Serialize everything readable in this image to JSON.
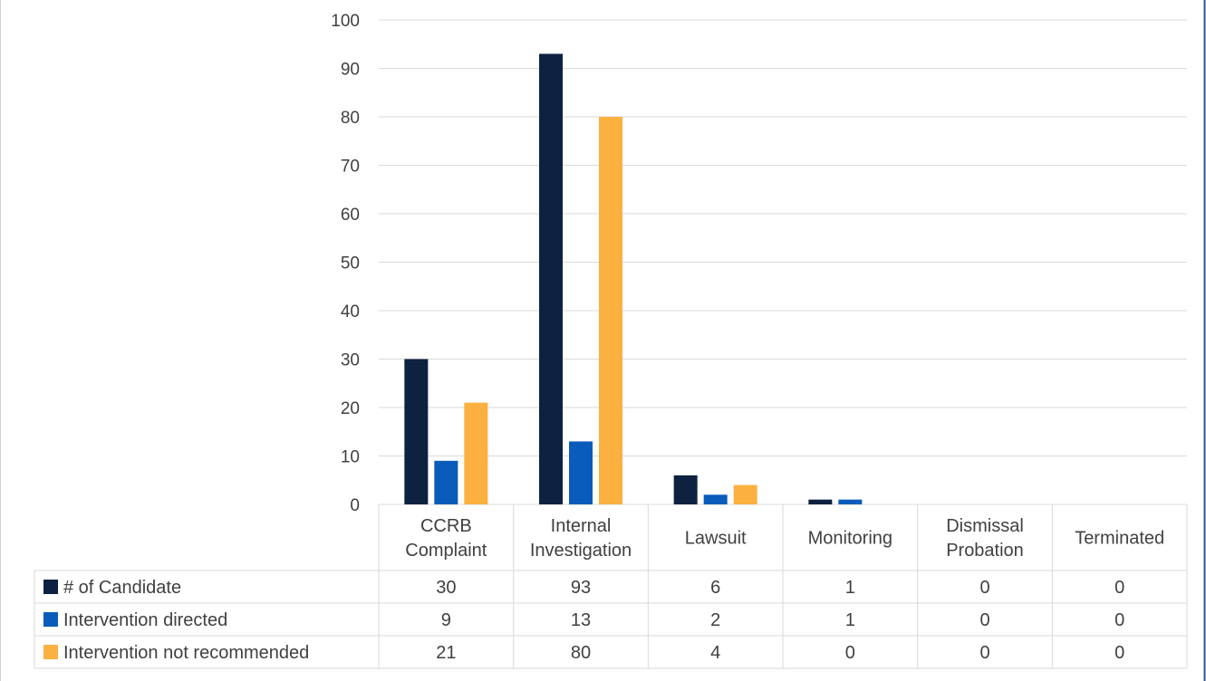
{
  "chart_data": {
    "type": "bar",
    "categories": [
      [
        "CCRB",
        "Complaint"
      ],
      [
        "Internal",
        "Investigation"
      ],
      [
        "Lawsuit"
      ],
      [
        "Monitoring"
      ],
      [
        "Dismissal",
        "Probation"
      ],
      [
        "Terminated"
      ]
    ],
    "series": [
      {
        "name": "# of Candidate",
        "color": "#0c2240",
        "values": [
          30,
          93,
          6,
          1,
          0,
          0
        ]
      },
      {
        "name": "Intervention directed",
        "color": "#0a5cba",
        "values": [
          9,
          13,
          2,
          1,
          0,
          0
        ]
      },
      {
        "name": "Intervention not recommended",
        "color": "#fbb040",
        "values": [
          21,
          80,
          4,
          0,
          0,
          0
        ]
      }
    ],
    "ylim": [
      0,
      100
    ],
    "yticks": [
      0,
      10,
      20,
      30,
      40,
      50,
      60,
      70,
      80,
      90,
      100
    ],
    "grid": true,
    "legend": "data table",
    "title": "",
    "xlabel": "",
    "ylabel": ""
  }
}
